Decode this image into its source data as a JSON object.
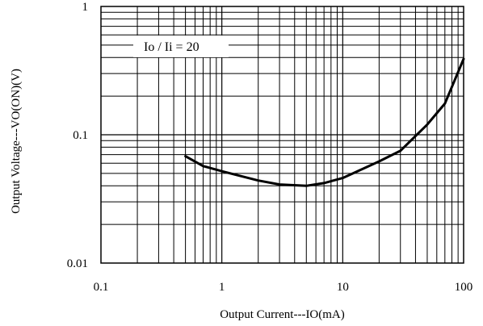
{
  "chart_data": {
    "type": "line",
    "x_scale": "log",
    "y_scale": "log",
    "xlim": [
      0.1,
      100
    ],
    "ylim": [
      0.01,
      1
    ],
    "xlabel": "Output Current---IO(mA)",
    "ylabel": "Output Voltage---VO(ON)(V)",
    "x_ticks": [
      "0.1",
      "1",
      "10",
      "100"
    ],
    "y_ticks": [
      "0.01",
      "0.1",
      "1"
    ],
    "annotation": "Io / Ii = 20",
    "grid": true,
    "series": [
      {
        "x": [
          0.5,
          0.7,
          1,
          2,
          3,
          5,
          7,
          10,
          20,
          30,
          50,
          70,
          100
        ],
        "y": [
          0.068,
          0.057,
          0.052,
          0.044,
          0.041,
          0.04,
          0.042,
          0.046,
          0.062,
          0.075,
          0.12,
          0.175,
          0.39
        ]
      }
    ],
    "colors": {
      "line": "#000000",
      "grid": "#000000",
      "annotation_bg": "#ffffff"
    }
  }
}
